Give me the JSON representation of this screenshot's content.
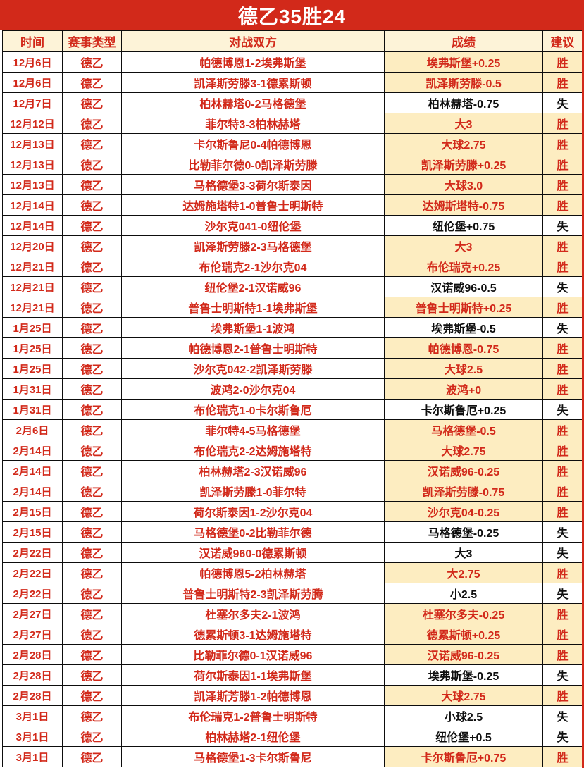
{
  "title": "德乙35胜24",
  "colors": {
    "accent_red": "#d2291a",
    "header_bg": "#fdf3d8",
    "highlight_bg": "#fdedc1",
    "loss_text": "#0f0f0f",
    "title_text": "#ffffff",
    "border": "#0d0d0d"
  },
  "chart_data": {
    "type": "table",
    "title": "德乙35胜24",
    "columns": [
      "时间",
      "赛事类型",
      "对战双方",
      "成绩",
      "建议"
    ],
    "rows": [
      {
        "date": "12月6日",
        "league": "德乙",
        "match": "帕德博恩1-2埃弗斯堡",
        "result": "埃弗斯堡+0.25",
        "advice": "胜"
      },
      {
        "date": "12月6日",
        "league": "德乙",
        "match": "凯泽斯劳滕3-1德累斯顿",
        "result": "凯泽斯劳滕-0.5",
        "advice": "胜"
      },
      {
        "date": "12月7日",
        "league": "德乙",
        "match": "柏林赫塔0-2马格德堡",
        "result": "柏林赫塔-0.75",
        "advice": "失"
      },
      {
        "date": "12月12日",
        "league": "德乙",
        "match": "菲尔特3-3柏林赫塔",
        "result": "大3",
        "advice": "胜"
      },
      {
        "date": "12月13日",
        "league": "德乙",
        "match": "卡尔斯鲁尼0-4帕德博恩",
        "result": "大球2.75",
        "advice": "胜"
      },
      {
        "date": "12月13日",
        "league": "德乙",
        "match": "比勒菲尔德0-0凯泽斯劳滕",
        "result": "凯泽斯劳滕+0.25",
        "advice": "胜"
      },
      {
        "date": "12月13日",
        "league": "德乙",
        "match": "马格德堡3-3荷尔斯泰因",
        "result": "大球3.0",
        "advice": "胜"
      },
      {
        "date": "12月14日",
        "league": "德乙",
        "match": "达姆施塔特1-0普鲁士明斯特",
        "result": "达姆斯塔特-0.75",
        "advice": "胜"
      },
      {
        "date": "12月14日",
        "league": "德乙",
        "match": "沙尔克041-0纽伦堡",
        "result": "纽伦堡+0.75",
        "advice": "失"
      },
      {
        "date": "12月20日",
        "league": "德乙",
        "match": "凯泽斯劳滕2-3马格德堡",
        "result": "大3",
        "advice": "胜"
      },
      {
        "date": "12月21日",
        "league": "德乙",
        "match": "布伦瑞克2-1沙尔克04",
        "result": "布伦瑞克+0.25",
        "advice": "胜"
      },
      {
        "date": "12月21日",
        "league": "德乙",
        "match": "纽伦堡2-1汉诺威96",
        "result": "汉诺威96-0.5",
        "advice": "失"
      },
      {
        "date": "12月21日",
        "league": "德乙",
        "match": "普鲁士明斯特1-1埃弗斯堡",
        "result": "普鲁士明斯特+0.25",
        "advice": "胜"
      },
      {
        "date": "1月25日",
        "league": "德乙",
        "match": "埃弗斯堡1-1波鸿",
        "result": "埃弗斯堡-0.5",
        "advice": "失"
      },
      {
        "date": "1月25日",
        "league": "德乙",
        "match": "帕德博恩2-1普鲁士明斯特",
        "result": "帕德博恩-0.75",
        "advice": "胜"
      },
      {
        "date": "1月25日",
        "league": "德乙",
        "match": "沙尔克042-2凯泽斯劳滕",
        "result": "大球2.5",
        "advice": "胜"
      },
      {
        "date": "1月31日",
        "league": "德乙",
        "match": "波鸿2-0沙尔克04",
        "result": "波鸿+0",
        "advice": "胜"
      },
      {
        "date": "1月31日",
        "league": "德乙",
        "match": "布伦瑞克1-0卡尔斯鲁厄",
        "result": "卡尔斯鲁厄+0.25",
        "advice": "失"
      },
      {
        "date": "2月6日",
        "league": "德乙",
        "match": "菲尔特4-5马格德堡",
        "result": "马格德堡-0.5",
        "advice": "胜"
      },
      {
        "date": "2月14日",
        "league": "德乙",
        "match": "布伦瑞克2-2达姆施塔特",
        "result": "大球2.75",
        "advice": "胜"
      },
      {
        "date": "2月14日",
        "league": "德乙",
        "match": "柏林赫塔2-3汉诺威96",
        "result": "汉诺威96-0.25",
        "advice": "胜"
      },
      {
        "date": "2月14日",
        "league": "德乙",
        "match": "凯泽斯劳滕1-0菲尔特",
        "result": "凯泽斯劳滕-0.75",
        "advice": "胜"
      },
      {
        "date": "2月15日",
        "league": "德乙",
        "match": "荷尔斯泰因1-2沙尔克04",
        "result": "沙尔克04-0.25",
        "advice": "胜"
      },
      {
        "date": "2月15日",
        "league": "德乙",
        "match": "马格德堡0-2比勒菲尔德",
        "result": "马格德堡-0.25",
        "advice": "失"
      },
      {
        "date": "2月22日",
        "league": "德乙",
        "match": "汉诺威960-0德累斯顿",
        "result": "大3",
        "advice": "失"
      },
      {
        "date": "2月22日",
        "league": "德乙",
        "match": "帕德博恩5-2柏林赫塔",
        "result": "大2.75",
        "advice": "胜"
      },
      {
        "date": "2月22日",
        "league": "德乙",
        "match": "普鲁士明斯特2-3凯泽斯劳腾",
        "result": "小2.5",
        "advice": "失"
      },
      {
        "date": "2月27日",
        "league": "德乙",
        "match": "杜塞尔多夫2-1波鸿",
        "result": "杜塞尔多夫-0.25",
        "advice": "胜"
      },
      {
        "date": "2月27日",
        "league": "德乙",
        "match": "德累斯顿3-1达姆施塔特",
        "result": "德累斯顿+0.25",
        "advice": "胜"
      },
      {
        "date": "2月28日",
        "league": "德乙",
        "match": "比勒菲尔德0-1汉诺威96",
        "result": "汉诺威96-0.25",
        "advice": "胜"
      },
      {
        "date": "2月28日",
        "league": "德乙",
        "match": "荷尔斯泰因1-1埃弗斯堡",
        "result": "埃弗斯堡-0.25",
        "advice": "失"
      },
      {
        "date": "2月28日",
        "league": "德乙",
        "match": "凯泽斯芳滕1-2帕德博恩",
        "result": "大球2.75",
        "advice": "胜"
      },
      {
        "date": "3月1日",
        "league": "德乙",
        "match": "布伦瑞克1-2普鲁士明斯特",
        "result": "小球2.5",
        "advice": "失"
      },
      {
        "date": "3月1日",
        "league": "德乙",
        "match": "柏林赫塔2-1纽伦堡",
        "result": "纽伦堡+0.5",
        "advice": "失"
      },
      {
        "date": "3月1日",
        "league": "德乙",
        "match": "马格德堡1-3卡尔斯鲁尼",
        "result": "卡尔斯鲁厄+0.75",
        "advice": "胜"
      }
    ]
  }
}
